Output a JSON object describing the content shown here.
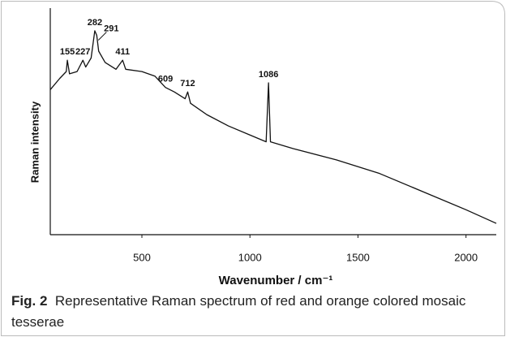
{
  "chart_data": {
    "type": "line",
    "x_label": "Wavenumber / cm⁻¹",
    "y_label": "Raman intensity",
    "x": [
      76,
      120,
      150,
      155,
      165,
      200,
      227,
      240,
      265,
      282,
      291,
      300,
      330,
      380,
      411,
      425,
      500,
      560,
      609,
      650,
      700,
      712,
      725,
      800,
      900,
      1000,
      1075,
      1086,
      1095,
      1200,
      1400,
      1600,
      1800,
      2000,
      2140
    ],
    "series": [
      {
        "color": "#111111",
        "values": [
          64,
          69,
          72,
          77,
          71,
          72,
          77,
          74,
          78,
          90,
          88,
          81,
          76,
          73,
          77,
          73,
          72,
          70,
          65,
          63,
          60,
          63,
          58,
          53,
          48,
          44,
          41,
          67,
          41,
          38,
          33,
          27,
          19,
          11,
          5
        ]
      }
    ],
    "xlim": [
      76,
      2140
    ],
    "ylim": [
      0,
      100
    ],
    "xticks": [
      500,
      1000,
      1500,
      2000
    ],
    "peak_labels": [
      155,
      227,
      282,
      291,
      411,
      609,
      712,
      1086
    ]
  },
  "caption": {
    "label": "Fig. 2",
    "text": "Representative Raman spectrum of red and orange colored mosaic tesserae"
  }
}
